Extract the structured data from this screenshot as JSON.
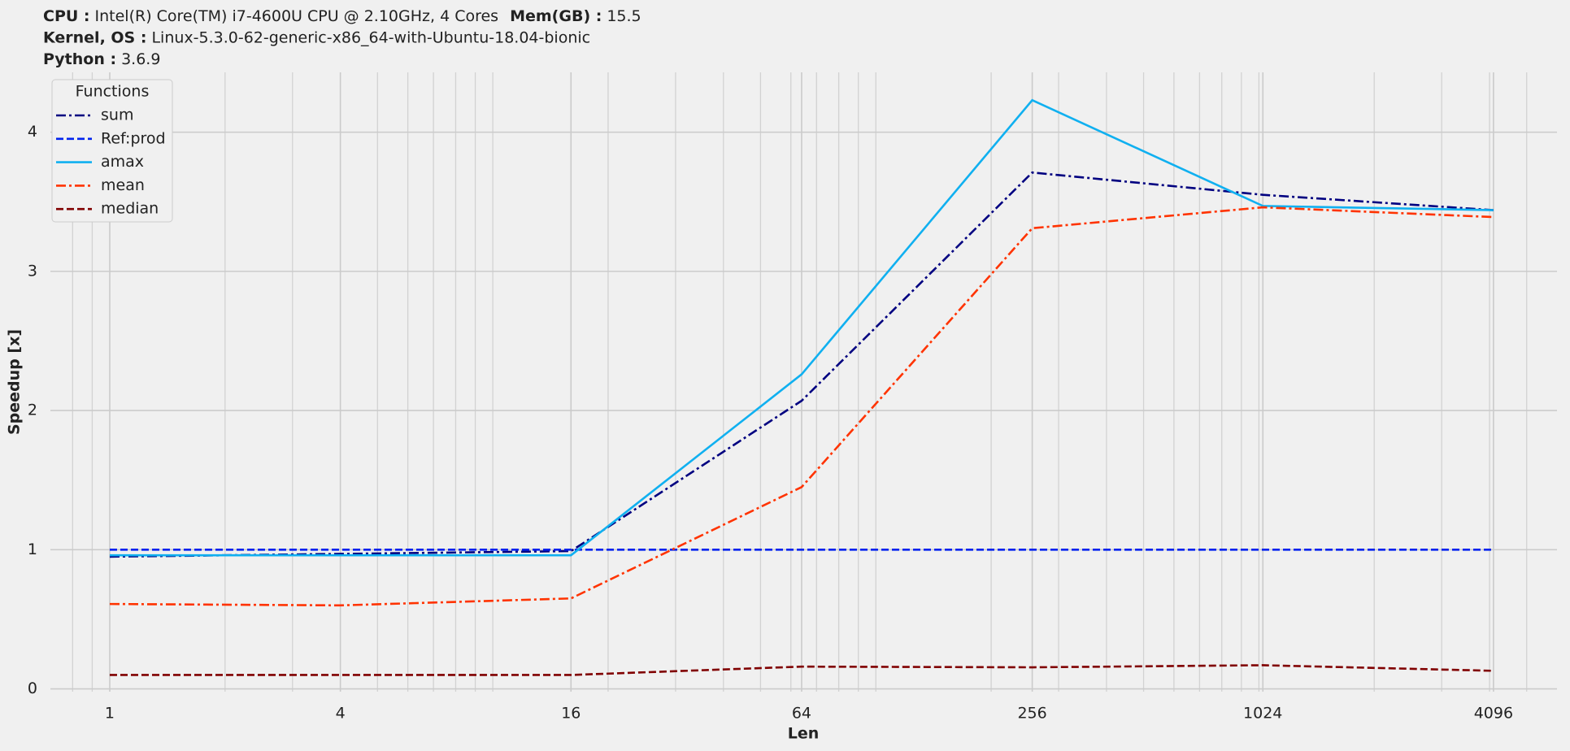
{
  "header": [
    [
      {
        "label": "CPU :",
        "value": "Intel(R) Core(TM) i7-4600U CPU @ 2.10GHz, 4 Cores"
      },
      {
        "label": "Mem(GB) :",
        "value": "15.5"
      }
    ],
    [
      {
        "label": "Kernel, OS :",
        "value": "Linux-5.3.0-62-generic-x86_64-with-Ubuntu-18.04-bionic"
      }
    ],
    [
      {
        "label": "Python :",
        "value": "3.6.9"
      }
    ]
  ],
  "chart_data": {
    "type": "line",
    "x_label": "Len",
    "y_label": "Speedup [x]",
    "x": [
      1,
      4,
      16,
      64,
      256,
      1024,
      4096
    ],
    "xscale": "log2",
    "xlim": [
      0.7,
      6000
    ],
    "xticks": [
      1,
      4,
      16,
      64,
      256,
      1024,
      4096
    ],
    "xminorticks": [
      0.8,
      0.9,
      2,
      3,
      5,
      6,
      7,
      8,
      9,
      10,
      20,
      30,
      40,
      50,
      60,
      70,
      80,
      90,
      100,
      200,
      300,
      400,
      500,
      600,
      700,
      800,
      900,
      1000,
      2000,
      3000,
      4000,
      5000
    ],
    "ylim": [
      -0.02,
      4.43
    ],
    "yticks": [
      0,
      1,
      2,
      3,
      4
    ],
    "grid": true,
    "legend_title": "Functions",
    "legend_position": "upper-left",
    "series": [
      {
        "name": "sum",
        "color": "#000080",
        "style": "dashdot",
        "values": [
          0.95,
          0.97,
          0.99,
          2.07,
          3.71,
          3.55,
          3.44
        ]
      },
      {
        "name": "Ref:prod",
        "color": "#0022ee",
        "style": "dashed",
        "values": [
          1,
          1,
          1,
          1,
          1,
          1,
          1
        ]
      },
      {
        "name": "amax",
        "color": "#10b0f0",
        "style": "solid",
        "values": [
          0.96,
          0.96,
          0.96,
          2.26,
          4.23,
          3.47,
          3.44
        ]
      },
      {
        "name": "mean",
        "color": "#ff3300",
        "style": "dashdot",
        "values": [
          0.61,
          0.6,
          0.65,
          1.45,
          3.31,
          3.46,
          3.39
        ]
      },
      {
        "name": "median",
        "color": "#800000",
        "style": "dashed",
        "values": [
          0.1,
          0.1,
          0.1,
          0.16,
          0.155,
          0.17,
          0.13
        ]
      }
    ]
  }
}
